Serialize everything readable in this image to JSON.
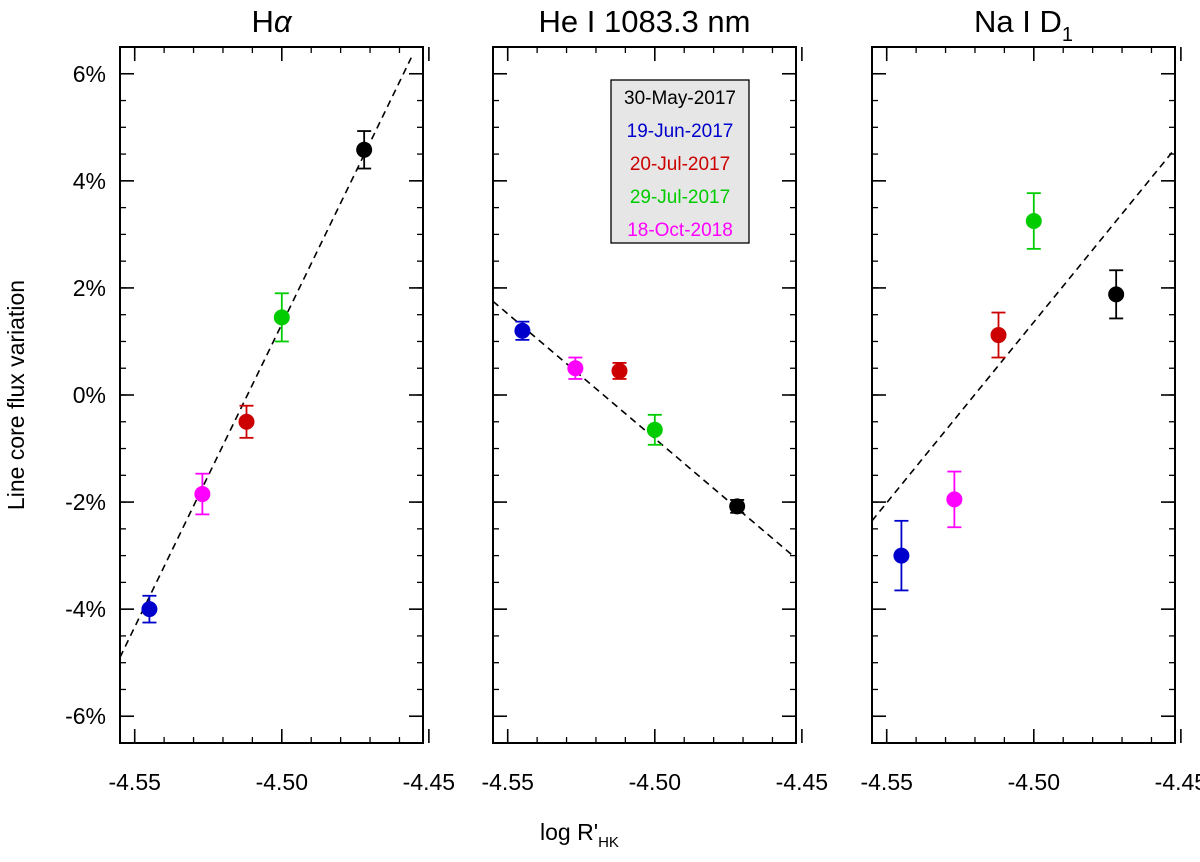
{
  "chart_data": {
    "type": "scatter",
    "ylabel": "Line core flux variation",
    "xlabel_main": "log R'",
    "xlabel_sub": "HK",
    "xlim": [
      -4.555,
      -4.452
    ],
    "ylim": [
      -6.5,
      6.5
    ],
    "x_ticks": [
      -4.55,
      -4.5,
      -4.45
    ],
    "x_tick_labels": [
      "-4.55",
      "-4.50",
      "-4.45"
    ],
    "y_ticks": [
      6,
      4,
      2,
      0,
      -2,
      -4,
      -6
    ],
    "y_tick_labels": [
      "6%",
      "4%",
      "2%",
      "0%",
      "-2%",
      "-4%",
      "-6%"
    ],
    "legend": {
      "placement": "top-right of middle panel",
      "entries": [
        {
          "label": "30-May-2017",
          "color": "#000000"
        },
        {
          "label": "19-Jun-2017",
          "color": "#0000cc"
        },
        {
          "label": "20-Jul-2017",
          "color": "#cc0000"
        },
        {
          "label": "29-Jul-2017",
          "color": "#00cc00"
        },
        {
          "label": "18-Oct-2018",
          "color": "#ff00ff"
        }
      ]
    },
    "panels": [
      {
        "title_main": "H",
        "title_greek": "α",
        "title_sub": "",
        "fit_line": {
          "x": [
            -4.555,
            -4.456
          ],
          "y": [
            -4.9,
            6.3
          ]
        },
        "points": [
          {
            "date": "19-Jun-2017",
            "color": "#0000cc",
            "x": -4.545,
            "y": -4.0,
            "err": 0.25
          },
          {
            "date": "18-Oct-2018",
            "color": "#ff00ff",
            "x": -4.527,
            "y": -1.85,
            "err": 0.38
          },
          {
            "date": "20-Jul-2017",
            "color": "#cc0000",
            "x": -4.512,
            "y": -0.5,
            "err": 0.3
          },
          {
            "date": "29-Jul-2017",
            "color": "#00cc00",
            "x": -4.5,
            "y": 1.45,
            "err": 0.45
          },
          {
            "date": "30-May-2017",
            "color": "#000000",
            "x": -4.472,
            "y": 4.58,
            "err": 0.35
          }
        ]
      },
      {
        "title_main": "He I 1083.3 nm",
        "title_greek": "",
        "title_sub": "",
        "fit_line": {
          "x": [
            -4.555,
            -4.452
          ],
          "y": [
            1.75,
            -3.05
          ]
        },
        "points": [
          {
            "date": "19-Jun-2017",
            "color": "#0000cc",
            "x": -4.545,
            "y": 1.2,
            "err": 0.17
          },
          {
            "date": "18-Oct-2018",
            "color": "#ff00ff",
            "x": -4.527,
            "y": 0.5,
            "err": 0.2
          },
          {
            "date": "20-Jul-2017",
            "color": "#cc0000",
            "x": -4.512,
            "y": 0.45,
            "err": 0.15
          },
          {
            "date": "29-Jul-2017",
            "color": "#00cc00",
            "x": -4.5,
            "y": -0.65,
            "err": 0.28
          },
          {
            "date": "30-May-2017",
            "color": "#000000",
            "x": -4.472,
            "y": -2.08,
            "err": 0.12
          }
        ]
      },
      {
        "title_main": "Na I D",
        "title_greek": "",
        "title_sub": "1",
        "fit_line": {
          "x": [
            -4.555,
            -4.452
          ],
          "y": [
            -2.35,
            4.6
          ]
        },
        "points": [
          {
            "date": "19-Jun-2017",
            "color": "#0000cc",
            "x": -4.545,
            "y": -3.0,
            "err": 0.65
          },
          {
            "date": "18-Oct-2018",
            "color": "#ff00ff",
            "x": -4.527,
            "y": -1.95,
            "err": 0.52
          },
          {
            "date": "20-Jul-2017",
            "color": "#cc0000",
            "x": -4.512,
            "y": 1.12,
            "err": 0.42
          },
          {
            "date": "29-Jul-2017",
            "color": "#00cc00",
            "x": -4.5,
            "y": 3.25,
            "err": 0.52
          },
          {
            "date": "30-May-2017",
            "color": "#000000",
            "x": -4.472,
            "y": 1.88,
            "err": 0.45
          }
        ]
      }
    ]
  }
}
